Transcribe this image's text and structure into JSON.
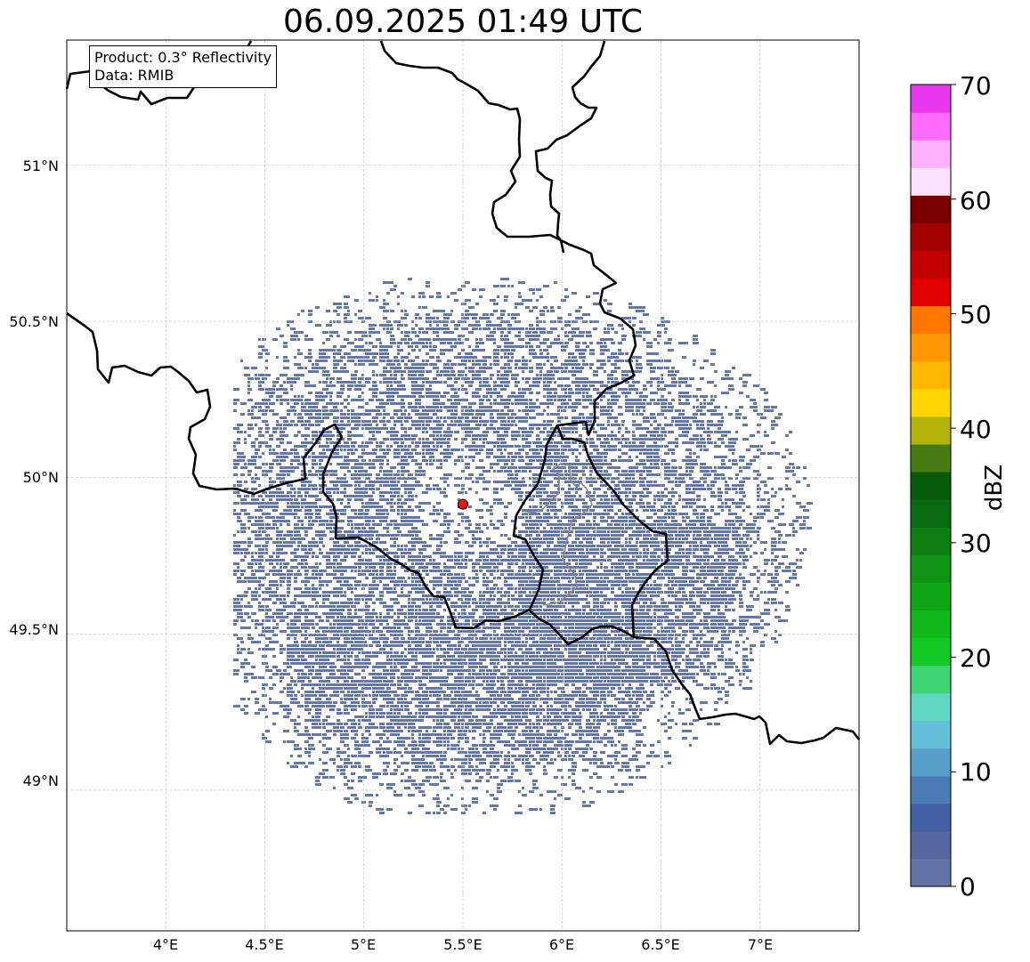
{
  "title": "06.09.2025 01:49 UTC",
  "info": {
    "product": "Product: 0.3° Reflectivity",
    "source": "Data: RMIB"
  },
  "map": {
    "lon_range": [
      3.5,
      7.5
    ],
    "lat_range": [
      48.55,
      51.4
    ],
    "lat_ticks": [
      "51°N",
      "50.5°N",
      "50°N",
      "49.5°N",
      "49°N"
    ],
    "lon_ticks": [
      "4°E",
      "4.5°E",
      "5°E",
      "5.5°E",
      "6°E",
      "6.5°E",
      "7°E"
    ],
    "radar_site": {
      "lon": 5.5,
      "lat": 49.915,
      "color": "#ee1111"
    },
    "echo_color": "#6477a8",
    "echo_level_dbz": "0–5"
  },
  "colorbar": {
    "label": "dBZ",
    "ticks": [
      "0",
      "10",
      "20",
      "30",
      "40",
      "50",
      "60",
      "70"
    ],
    "colors": [
      "#6474a8",
      "#55689f",
      "#4461a6",
      "#4b7bb5",
      "#579ec8",
      "#63c0d8",
      "#5ed8c1",
      "#3ed373",
      "#12c822",
      "#11b91a",
      "#0fa615",
      "#0e9314",
      "#0c7e12",
      "#0a6a0f",
      "#085b0b",
      "#487d13",
      "#b2b40c",
      "#ffd500",
      "#ffb700",
      "#ff9700",
      "#ff7700",
      "#e10000",
      "#c20000",
      "#a30000",
      "#7a0000",
      "#fde2fe",
      "#fdb0fc",
      "#fd6cfb",
      "#ea38ee"
    ]
  }
}
